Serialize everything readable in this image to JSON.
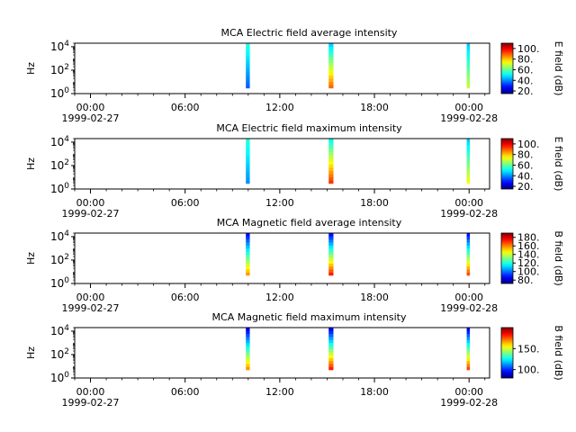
{
  "figure": {
    "background": "#ffffff"
  },
  "chart_data": [
    {
      "type": "heatmap",
      "title": "MCA  Electric field average intensity",
      "ylabel": "Hz",
      "ylog": true,
      "ylim": [
        1,
        20000
      ],
      "y_ticks": [
        {
          "exp": "0"
        },
        {
          "exp": "2"
        },
        {
          "exp": "4"
        }
      ],
      "x_ticks": [
        "00:00",
        "06:00",
        "12:00",
        "18:00",
        "00:00"
      ],
      "x_ticks_hours": [
        0,
        6,
        12,
        18,
        24
      ],
      "x_date_labels": [
        "1999-02-27",
        "1999-02-28"
      ],
      "xlim_hours": [
        -1,
        25.3
      ],
      "colorbar": {
        "label": "E field (dB)",
        "range": [
          15,
          110
        ],
        "ticks": [
          "20.",
          "40.",
          "60.",
          "80.",
          "100."
        ],
        "tick_values": [
          20,
          40,
          60,
          80,
          100
        ]
      },
      "passes": [
        {
          "start_hour": 9.85,
          "end_hour": 10.1,
          "columns": [
            {
              "f_low": 3,
              "f_high": 20000,
              "dB_low": 35,
              "dB_high": 55
            }
          ]
        },
        {
          "start_hour": 15.1,
          "end_hour": 15.4,
          "columns": [
            {
              "f_low": 3,
              "f_high": 20000,
              "dB_low": 90,
              "dB_high": 45
            }
          ]
        },
        {
          "start_hour": 23.85,
          "end_hour": 24.05,
          "columns": [
            {
              "f_low": 3,
              "f_high": 20000,
              "dB_low": 70,
              "dB_high": 45
            }
          ]
        }
      ]
    },
    {
      "type": "heatmap",
      "title": "MCA  Electric field maximum intensity",
      "ylabel": "Hz",
      "ylog": true,
      "ylim": [
        1,
        20000
      ],
      "y_ticks": [
        {
          "exp": "0"
        },
        {
          "exp": "2"
        },
        {
          "exp": "4"
        }
      ],
      "x_ticks": [
        "00:00",
        "06:00",
        "12:00",
        "18:00",
        "00:00"
      ],
      "x_ticks_hours": [
        0,
        6,
        12,
        18,
        24
      ],
      "x_date_labels": [
        "1999-02-27",
        "1999-02-28"
      ],
      "xlim_hours": [
        -1,
        25.3
      ],
      "colorbar": {
        "label": "E field (dB)",
        "range": [
          15,
          110
        ],
        "ticks": [
          "20.",
          "40.",
          "60.",
          "80.",
          "100."
        ],
        "tick_values": [
          20,
          40,
          60,
          80,
          100
        ]
      },
      "passes": [
        {
          "start_hour": 9.85,
          "end_hour": 10.1,
          "columns": [
            {
              "f_low": 3,
              "f_high": 20000,
              "dB_low": 40,
              "dB_high": 55
            }
          ]
        },
        {
          "start_hour": 15.1,
          "end_hour": 15.4,
          "columns": [
            {
              "f_low": 3,
              "f_high": 20000,
              "dB_low": 95,
              "dB_high": 50
            }
          ]
        },
        {
          "start_hour": 23.85,
          "end_hour": 24.05,
          "columns": [
            {
              "f_low": 3,
              "f_high": 20000,
              "dB_low": 75,
              "dB_high": 45
            }
          ]
        }
      ]
    },
    {
      "type": "heatmap",
      "title": "MCA  Magnetic field average intensity",
      "ylabel": "Hz",
      "ylog": true,
      "ylim": [
        1,
        20000
      ],
      "y_ticks": [
        {
          "exp": "0"
        },
        {
          "exp": "2"
        },
        {
          "exp": "4"
        }
      ],
      "x_ticks": [
        "00:00",
        "06:00",
        "12:00",
        "18:00",
        "00:00"
      ],
      "x_ticks_hours": [
        0,
        6,
        12,
        18,
        24
      ],
      "x_date_labels": [
        "1999-02-27",
        "1999-02-28"
      ],
      "xlim_hours": [
        -1,
        25.3
      ],
      "colorbar": {
        "label": "B field (dB)",
        "range": [
          72,
          190
        ],
        "ticks": [
          "80.",
          "100.",
          "120.",
          "140.",
          "160.",
          "180."
        ],
        "tick_values": [
          80,
          100,
          120,
          140,
          160,
          180
        ]
      },
      "passes": [
        {
          "start_hour": 9.85,
          "end_hour": 10.1,
          "columns": [
            {
              "f_low": 5,
              "f_high": 20000,
              "dB_low": 160,
              "dB_high": 85
            }
          ]
        },
        {
          "start_hour": 15.1,
          "end_hour": 15.4,
          "columns": [
            {
              "f_low": 5,
              "f_high": 20000,
              "dB_low": 175,
              "dB_high": 85
            }
          ]
        },
        {
          "start_hour": 23.85,
          "end_hour": 24.05,
          "columns": [
            {
              "f_low": 5,
              "f_high": 20000,
              "dB_low": 170,
              "dB_high": 85
            }
          ]
        }
      ]
    },
    {
      "type": "heatmap",
      "title": "MCA  Magnetic field maximum intensity",
      "ylabel": "Hz",
      "ylog": true,
      "ylim": [
        1,
        20000
      ],
      "y_ticks": [
        {
          "exp": "0"
        },
        {
          "exp": "2"
        },
        {
          "exp": "4"
        }
      ],
      "x_ticks": [
        "00:00",
        "06:00",
        "12:00",
        "18:00",
        "00:00"
      ],
      "x_ticks_hours": [
        0,
        6,
        12,
        18,
        24
      ],
      "x_date_labels": [
        "1999-02-27",
        "1999-02-28"
      ],
      "xlim_hours": [
        -1,
        25.3
      ],
      "colorbar": {
        "label": "B field (dB)",
        "range": [
          80,
          200
        ],
        "ticks": [
          "100.",
          "150."
        ],
        "tick_values": [
          100,
          150
        ]
      },
      "passes": [
        {
          "start_hour": 9.85,
          "end_hour": 10.1,
          "columns": [
            {
              "f_low": 5,
              "f_high": 20000,
              "dB_low": 170,
              "dB_high": 90
            }
          ]
        },
        {
          "start_hour": 15.1,
          "end_hour": 15.4,
          "columns": [
            {
              "f_low": 5,
              "f_high": 20000,
              "dB_low": 185,
              "dB_high": 90
            }
          ]
        },
        {
          "start_hour": 23.85,
          "end_hour": 24.05,
          "columns": [
            {
              "f_low": 5,
              "f_high": 20000,
              "dB_low": 180,
              "dB_high": 90
            }
          ]
        }
      ]
    }
  ]
}
